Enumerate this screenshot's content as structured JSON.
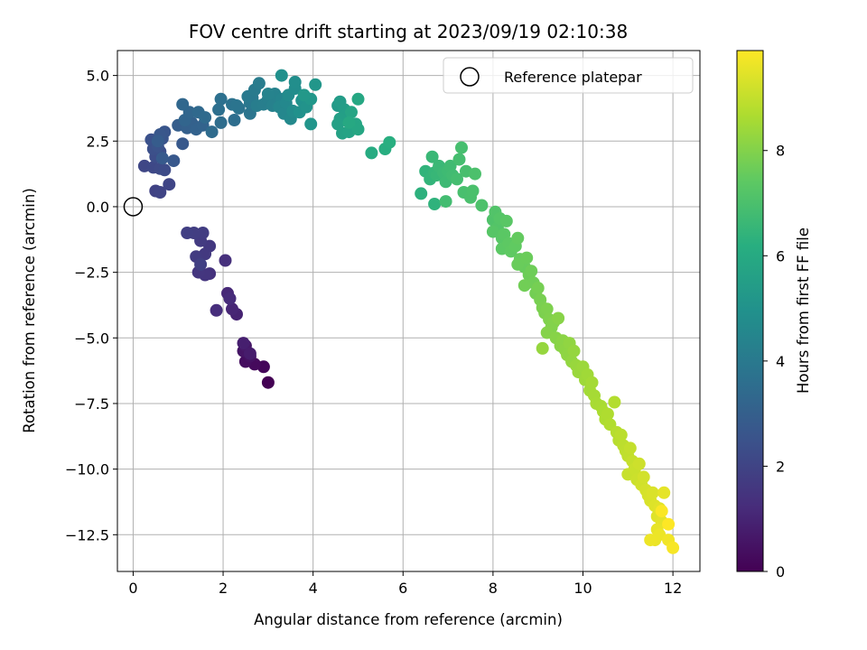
{
  "chart_data": {
    "type": "scatter",
    "title": "FOV centre drift starting at 2023/09/19 02:10:38",
    "xlabel": "Angular distance from reference (arcmin)",
    "ylabel": "Rotation from reference (arcmin)",
    "xlim": [
      -0.35,
      12.6
    ],
    "ylim": [
      -13.9,
      5.95
    ],
    "xticks": [
      0,
      2,
      4,
      6,
      8,
      10,
      12
    ],
    "xtick_labels": [
      "0",
      "2",
      "4",
      "6",
      "8",
      "10",
      "12"
    ],
    "yticks": [
      5.0,
      2.5,
      0.0,
      -2.5,
      -5.0,
      -7.5,
      -10.0,
      -12.5
    ],
    "ytick_labels": [
      "5.0",
      "2.5",
      "0.0",
      "−2.5",
      "−5.0",
      "−7.5",
      "−10.0",
      "−12.5"
    ],
    "grid": true,
    "legend": {
      "position": "top-right",
      "entries": [
        "Reference platepar"
      ]
    },
    "reference_point": {
      "x": 0,
      "y": 0,
      "label": "Reference platepar"
    },
    "colorbar": {
      "label": "Hours from first FF file",
      "range": [
        0,
        9.9
      ],
      "ticks": [
        0,
        2,
        4,
        6,
        8
      ],
      "tick_labels": [
        "0",
        "2",
        "4",
        "6",
        "8"
      ],
      "colormap": "viridis"
    },
    "points": [
      [
        3.0,
        -6.7,
        0.0
      ],
      [
        2.9,
        -6.1,
        0.15
      ],
      [
        2.7,
        -6.0,
        0.25
      ],
      [
        2.5,
        -5.9,
        0.35
      ],
      [
        2.6,
        -5.7,
        0.45
      ],
      [
        2.45,
        -5.5,
        0.55
      ],
      [
        2.5,
        -5.3,
        0.65
      ],
      [
        2.6,
        -5.6,
        0.75
      ],
      [
        2.45,
        -5.2,
        0.85
      ],
      [
        2.3,
        -4.1,
        0.95
      ],
      [
        2.2,
        -3.9,
        1.05
      ],
      [
        2.1,
        -3.3,
        1.12
      ],
      [
        2.15,
        -3.5,
        1.2
      ],
      [
        1.85,
        -3.95,
        1.28
      ],
      [
        2.05,
        -2.05,
        1.35
      ],
      [
        1.7,
        -2.55,
        1.42
      ],
      [
        1.6,
        -2.6,
        1.5
      ],
      [
        1.45,
        -2.5,
        1.55
      ],
      [
        1.7,
        -1.5,
        1.6
      ],
      [
        1.6,
        -1.8,
        1.65
      ],
      [
        1.5,
        -1.3,
        1.7
      ],
      [
        1.4,
        -1.9,
        1.72
      ],
      [
        1.55,
        -1.0,
        1.76
      ],
      [
        1.35,
        -1.0,
        1.8
      ],
      [
        1.2,
        -1.0,
        1.85
      ],
      [
        1.5,
        -2.2,
        1.88
      ],
      [
        0.5,
        0.6,
        1.95
      ],
      [
        0.6,
        0.55,
        2.0
      ],
      [
        0.8,
        0.85,
        2.05
      ],
      [
        0.25,
        1.55,
        2.1
      ],
      [
        0.45,
        1.5,
        2.15
      ],
      [
        0.6,
        1.45,
        2.2
      ],
      [
        0.7,
        1.4,
        2.25
      ],
      [
        0.5,
        1.9,
        2.3
      ],
      [
        0.6,
        2.1,
        2.35
      ],
      [
        0.45,
        2.2,
        2.4
      ],
      [
        0.4,
        2.55,
        2.45
      ],
      [
        0.55,
        2.3,
        2.5
      ],
      [
        0.65,
        2.6,
        2.55
      ],
      [
        0.7,
        2.85,
        2.6
      ],
      [
        0.6,
        2.75,
        2.65
      ],
      [
        0.9,
        1.75,
        2.7
      ],
      [
        1.1,
        2.4,
        2.75
      ],
      [
        0.65,
        1.85,
        2.8
      ],
      [
        0.55,
        2.5,
        2.85
      ],
      [
        1.0,
        3.1,
        2.95
      ],
      [
        1.2,
        3.0,
        3.0
      ],
      [
        1.3,
        3.2,
        3.05
      ],
      [
        1.4,
        2.95,
        3.1
      ],
      [
        1.55,
        3.1,
        3.15
      ],
      [
        1.15,
        3.3,
        3.2
      ],
      [
        1.25,
        3.6,
        3.25
      ],
      [
        1.1,
        3.9,
        3.3
      ],
      [
        1.45,
        3.6,
        3.35
      ],
      [
        1.6,
        3.4,
        3.4
      ],
      [
        1.75,
        2.85,
        3.45
      ],
      [
        1.95,
        3.2,
        3.5
      ],
      [
        2.25,
        3.3,
        3.55
      ],
      [
        1.9,
        3.7,
        3.6
      ],
      [
        1.95,
        4.1,
        3.65
      ],
      [
        2.2,
        3.9,
        3.7
      ],
      [
        2.35,
        3.75,
        3.75
      ],
      [
        2.3,
        3.85,
        3.8
      ],
      [
        2.6,
        3.55,
        3.85
      ],
      [
        2.6,
        3.95,
        3.9
      ],
      [
        2.65,
        4.15,
        3.95
      ],
      [
        2.55,
        4.2,
        4.0
      ],
      [
        2.7,
        4.45,
        4.05
      ],
      [
        2.8,
        4.7,
        4.1
      ],
      [
        2.75,
        3.85,
        4.15
      ],
      [
        2.9,
        3.9,
        4.2
      ],
      [
        3.0,
        4.1,
        4.25
      ],
      [
        3.1,
        3.85,
        4.3
      ],
      [
        3.15,
        4.3,
        4.35
      ],
      [
        3.0,
        4.3,
        4.4
      ],
      [
        3.3,
        4.1,
        4.45
      ],
      [
        3.25,
        3.8,
        4.5
      ],
      [
        3.35,
        3.55,
        4.55
      ],
      [
        3.4,
        3.95,
        4.6
      ],
      [
        3.5,
        3.35,
        4.65
      ],
      [
        3.45,
        4.25,
        4.7
      ],
      [
        3.55,
        3.65,
        4.75
      ],
      [
        3.6,
        4.5,
        4.8
      ],
      [
        3.6,
        4.75,
        4.85
      ],
      [
        3.3,
        5.0,
        4.9
      ],
      [
        3.7,
        3.6,
        4.95
      ],
      [
        3.75,
        4.05,
        5.0
      ],
      [
        3.85,
        3.8,
        5.05
      ],
      [
        3.95,
        3.15,
        5.1
      ],
      [
        4.05,
        4.65,
        5.15
      ],
      [
        3.95,
        4.1,
        5.2
      ],
      [
        3.8,
        4.25,
        5.25
      ],
      [
        4.55,
        3.85,
        5.35
      ],
      [
        4.6,
        4.0,
        5.4
      ],
      [
        4.7,
        3.7,
        5.45
      ],
      [
        4.75,
        3.5,
        5.5
      ],
      [
        4.6,
        3.35,
        5.55
      ],
      [
        4.55,
        3.15,
        5.6
      ],
      [
        4.65,
        2.8,
        5.65
      ],
      [
        4.8,
        2.85,
        5.7
      ],
      [
        4.85,
        3.6,
        5.75
      ],
      [
        4.95,
        3.15,
        5.8
      ],
      [
        5.0,
        2.95,
        5.85
      ],
      [
        5.0,
        4.1,
        5.9
      ],
      [
        4.8,
        3.2,
        5.95
      ],
      [
        5.3,
        2.05,
        6.05
      ],
      [
        5.6,
        2.2,
        6.15
      ],
      [
        5.7,
        2.45,
        6.2
      ],
      [
        6.4,
        0.5,
        6.3
      ],
      [
        6.7,
        0.1,
        6.35
      ],
      [
        6.5,
        1.35,
        6.4
      ],
      [
        6.6,
        1.05,
        6.45
      ],
      [
        6.7,
        1.3,
        6.5
      ],
      [
        6.75,
        1.2,
        6.55
      ],
      [
        6.65,
        1.9,
        6.6
      ],
      [
        6.8,
        1.55,
        6.62
      ],
      [
        6.9,
        1.3,
        6.66
      ],
      [
        6.95,
        0.95,
        6.7
      ],
      [
        7.0,
        1.35,
        6.72
      ],
      [
        7.05,
        1.55,
        6.76
      ],
      [
        7.1,
        1.2,
        6.78
      ],
      [
        6.95,
        0.2,
        6.82
      ],
      [
        7.2,
        1.05,
        6.86
      ],
      [
        7.25,
        1.8,
        6.88
      ],
      [
        7.3,
        2.25,
        6.9
      ],
      [
        7.4,
        1.35,
        6.92
      ],
      [
        7.35,
        0.55,
        6.95
      ],
      [
        7.5,
        0.35,
        6.98
      ],
      [
        7.55,
        0.6,
        7.0
      ],
      [
        7.6,
        1.25,
        7.02
      ],
      [
        7.75,
        0.05,
        7.05
      ],
      [
        8.0,
        -0.5,
        7.1
      ],
      [
        8.05,
        -0.2,
        7.15
      ],
      [
        8.1,
        -0.8,
        7.18
      ],
      [
        8.15,
        -0.45,
        7.22
      ],
      [
        8.0,
        -0.95,
        7.25
      ],
      [
        8.2,
        -1.2,
        7.28
      ],
      [
        8.3,
        -0.55,
        7.3
      ],
      [
        8.25,
        -1.05,
        7.33
      ],
      [
        8.2,
        -1.6,
        7.36
      ],
      [
        8.35,
        -1.4,
        7.4
      ],
      [
        8.4,
        -1.7,
        7.43
      ],
      [
        8.5,
        -1.5,
        7.46
      ],
      [
        8.55,
        -1.2,
        7.5
      ],
      [
        8.6,
        -2.0,
        7.53
      ],
      [
        8.7,
        -2.3,
        7.56
      ],
      [
        8.55,
        -2.2,
        7.6
      ],
      [
        8.75,
        -1.95,
        7.62
      ],
      [
        8.8,
        -2.6,
        7.65
      ],
      [
        8.85,
        -2.45,
        7.68
      ],
      [
        8.9,
        -2.9,
        7.7
      ],
      [
        8.7,
        -3.0,
        7.72
      ],
      [
        8.95,
        -3.3,
        7.76
      ],
      [
        9.0,
        -3.1,
        7.8
      ],
      [
        9.05,
        -3.55,
        7.83
      ],
      [
        9.1,
        -3.85,
        7.86
      ],
      [
        9.15,
        -4.05,
        7.9
      ],
      [
        9.2,
        -3.9,
        7.92
      ],
      [
        9.25,
        -4.3,
        7.95
      ],
      [
        9.3,
        -4.6,
        7.98
      ],
      [
        9.35,
        -4.4,
        8.0
      ],
      [
        9.2,
        -4.8,
        8.03
      ],
      [
        9.4,
        -5.0,
        8.06
      ],
      [
        9.45,
        -4.25,
        8.08
      ],
      [
        9.5,
        -5.3,
        8.1
      ],
      [
        9.55,
        -5.1,
        8.13
      ],
      [
        9.6,
        -5.45,
        8.16
      ],
      [
        9.65,
        -5.65,
        8.2
      ],
      [
        9.7,
        -5.2,
        8.22
      ],
      [
        9.75,
        -5.9,
        8.25
      ],
      [
        9.8,
        -5.5,
        8.28
      ],
      [
        9.1,
        -5.4,
        8.3
      ],
      [
        9.85,
        -6.05,
        8.33
      ],
      [
        9.9,
        -6.3,
        8.36
      ],
      [
        10.0,
        -6.1,
        8.4
      ],
      [
        10.05,
        -6.6,
        8.43
      ],
      [
        10.1,
        -6.4,
        8.46
      ],
      [
        10.15,
        -7.0,
        8.5
      ],
      [
        10.2,
        -6.7,
        8.52
      ],
      [
        10.25,
        -7.2,
        8.55
      ],
      [
        10.3,
        -7.5,
        8.58
      ],
      [
        10.4,
        -7.6,
        8.6
      ],
      [
        10.45,
        -7.8,
        8.63
      ],
      [
        10.5,
        -8.1,
        8.66
      ],
      [
        10.55,
        -7.9,
        8.7
      ],
      [
        10.6,
        -8.3,
        8.73
      ],
      [
        10.7,
        -7.45,
        8.76
      ],
      [
        10.75,
        -8.6,
        8.8
      ],
      [
        10.8,
        -8.9,
        8.83
      ],
      [
        10.85,
        -8.7,
        8.86
      ],
      [
        10.9,
        -9.1,
        8.9
      ],
      [
        10.95,
        -9.3,
        8.93
      ],
      [
        11.0,
        -9.5,
        8.96
      ],
      [
        11.05,
        -9.2,
        9.0
      ],
      [
        11.1,
        -9.7,
        9.03
      ],
      [
        11.0,
        -10.2,
        9.06
      ],
      [
        11.15,
        -10.0,
        9.1
      ],
      [
        11.2,
        -10.4,
        9.13
      ],
      [
        11.25,
        -9.8,
        9.16
      ],
      [
        11.3,
        -10.6,
        9.2
      ],
      [
        11.35,
        -10.3,
        9.23
      ],
      [
        11.4,
        -10.8,
        9.26
      ],
      [
        11.45,
        -11.0,
        9.3
      ],
      [
        11.5,
        -11.2,
        9.33
      ],
      [
        11.55,
        -10.9,
        9.36
      ],
      [
        11.6,
        -11.4,
        9.4
      ],
      [
        11.65,
        -11.8,
        9.43
      ],
      [
        11.7,
        -11.5,
        9.46
      ],
      [
        11.75,
        -12.0,
        9.5
      ],
      [
        11.8,
        -10.9,
        9.53
      ],
      [
        11.65,
        -12.3,
        9.56
      ],
      [
        11.6,
        -12.7,
        9.6
      ],
      [
        11.7,
        -12.5,
        9.63
      ],
      [
        11.5,
        -12.7,
        9.66
      ],
      [
        11.9,
        -12.7,
        9.72
      ],
      [
        12.0,
        -13.0,
        9.8
      ],
      [
        11.75,
        -11.6,
        9.85
      ],
      [
        11.9,
        -12.1,
        9.9
      ]
    ]
  }
}
